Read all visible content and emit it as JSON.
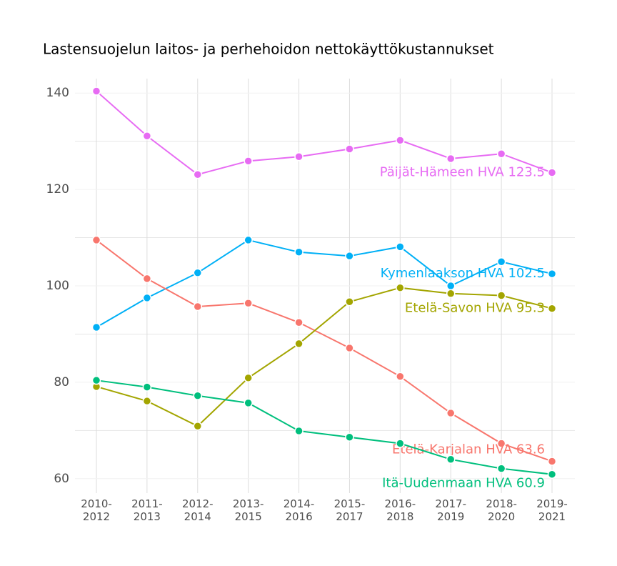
{
  "chart_data": {
    "type": "line",
    "title": "Lastensuojelun laitos- ja perhehoidon nettokäyttökustannukset",
    "categories": [
      "2010-2012",
      "2011-2013",
      "2012-2014",
      "2013-2015",
      "2014-2016",
      "2015-2017",
      "2016-2018",
      "2017-2019",
      "2018-2020",
      "2019-2021"
    ],
    "series": [
      {
        "name": "Päijät-Hämeen HVA",
        "color": "#e76bf3",
        "label": "Päijät-Hämeen HVA 123.5",
        "values": [
          140.4,
          131.1,
          123.1,
          125.9,
          126.8,
          128.4,
          130.2,
          126.4,
          127.4,
          123.5
        ]
      },
      {
        "name": "Kymenlaakson HVA",
        "color": "#00b0f6",
        "label": "Kymenlaakson HVA 102.5",
        "values": [
          91.4,
          97.5,
          102.7,
          109.5,
          107.0,
          106.2,
          108.1,
          100.0,
          105.0,
          102.5
        ]
      },
      {
        "name": "Etelä-Karjalan HVA",
        "color": "#f8766d",
        "label": "Etelä-Karjalan HVA 63.6",
        "values": [
          109.5,
          101.5,
          95.7,
          96.4,
          92.4,
          87.1,
          81.2,
          73.6,
          67.3,
          63.6
        ]
      },
      {
        "name": "Etelä-Savon HVA",
        "color": "#a3a500",
        "label": "Etelä-Savon HVA 95.3",
        "values": [
          79.1,
          76.1,
          70.9,
          80.9,
          88.0,
          96.7,
          99.6,
          98.4,
          98.0,
          95.3
        ]
      },
      {
        "name": "Itä-Uudenmaan HVA",
        "color": "#00bf7d",
        "label": "Itä-Uudenmaan HVA 60.9",
        "values": [
          80.4,
          79.0,
          77.2,
          75.7,
          69.9,
          68.6,
          67.3,
          64.0,
          62.1,
          60.9
        ]
      }
    ],
    "ylim": [
      57,
      143
    ],
    "yticks": [
      60,
      80,
      100,
      120,
      140
    ],
    "minor_yticks": [
      70,
      90,
      110,
      130
    ],
    "grid": true
  }
}
